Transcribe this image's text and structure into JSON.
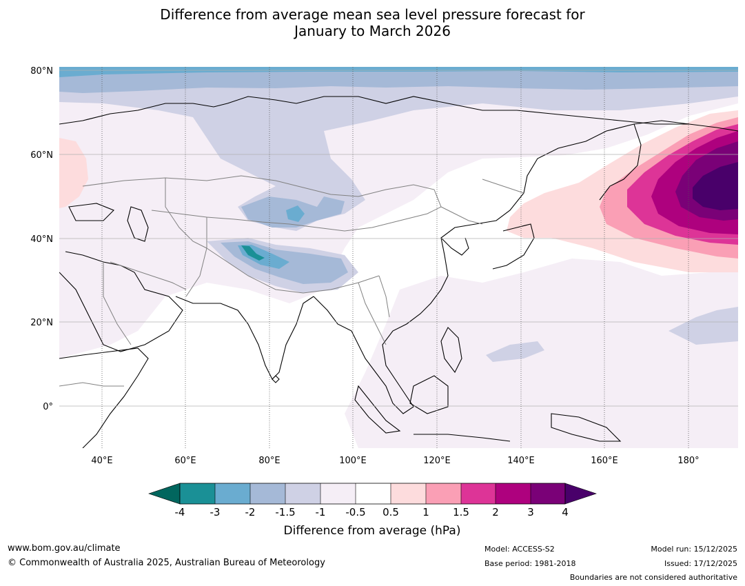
{
  "title": {
    "line1": "Difference from average mean sea level pressure forecast for",
    "line2": "January to March 2026"
  },
  "map": {
    "lat_labels": [
      "80°N",
      "60°N",
      "40°N",
      "20°N",
      "0°"
    ],
    "lon_labels": [
      "40°E",
      "60°E",
      "80°E",
      "100°E",
      "120°E",
      "140°E",
      "160°E",
      "180°"
    ]
  },
  "colorbar": {
    "title": "Difference from average (hPa)",
    "ticks": [
      "-4",
      "-3",
      "-2",
      "-1.5",
      "-1",
      "-0.5",
      "0.5",
      "1",
      "1.5",
      "2",
      "3",
      "4"
    ],
    "colors": {
      "below_min": "#01665e",
      "lt_-3": "#1a9096",
      "lt_-2": "#6aacd0",
      "lt_-1.5": "#a5b9d7",
      "lt_-1": "#cfd1e5",
      "lt_-0.5": "#f5eef6",
      "neutral": "#ffffff",
      "gt_0.5": "#fddcdd",
      "gt_1": "#fa9fb5",
      "gt_1.5": "#dd3497",
      "gt_2": "#ae017e",
      "gt_3": "#7a0177",
      "above_max": "#49006a"
    }
  },
  "footer": {
    "website": "www.bom.gov.au/climate",
    "copyright": "© Commonwealth of Australia 2025, Australian Bureau of Meteorology",
    "model": "Model: ACCESS-S2",
    "base_period": "Base period: 1981-2018",
    "model_run": "Model run: 15/12/2025",
    "issued": "Issued: 17/12/2025",
    "disclaimer": "Boundaries are not considered authoritative"
  }
}
